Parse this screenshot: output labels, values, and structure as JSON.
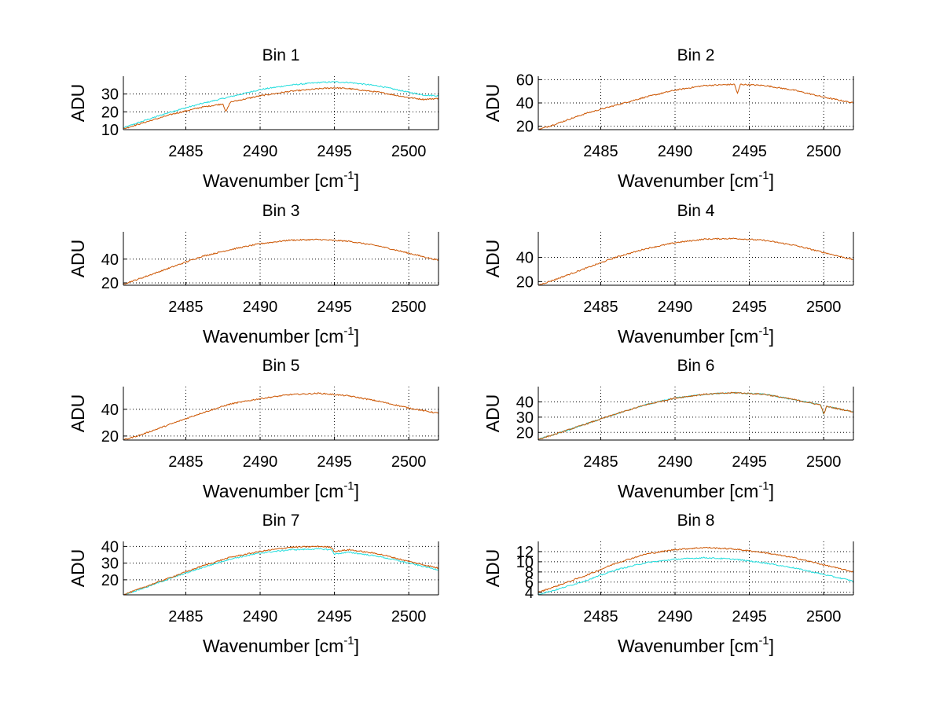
{
  "figure": {
    "background": "#ffffff"
  },
  "colors": {
    "series_a": "#cc5500",
    "series_b": "#22dddd",
    "grid": "#000000"
  },
  "chart_data": [
    {
      "type": "line",
      "title": "Bin 1",
      "xlabel": "Wavenumber [cm",
      "xlabel_sup": "-1",
      "xlabel_end": "]",
      "ylabel": "ADU",
      "xlim": [
        2480.8,
        2502
      ],
      "ylim": [
        10,
        40
      ],
      "xticks": [
        2485,
        2490,
        2495,
        2500
      ],
      "yticks": [
        10,
        20,
        30
      ],
      "grid": true,
      "series": [
        {
          "color": "#22dddd",
          "x": [
            2480.8,
            2482,
            2484,
            2486,
            2488,
            2490,
            2492,
            2494,
            2495,
            2496,
            2498,
            2500,
            2501,
            2502
          ],
          "values": [
            11,
            14.5,
            20,
            24.5,
            28.5,
            32.5,
            35,
            36.5,
            36.8,
            36.5,
            34.5,
            31,
            29.5,
            29
          ]
        },
        {
          "color": "#cc5500",
          "x": [
            2480.8,
            2482,
            2484,
            2486,
            2487.5,
            2487.7,
            2488,
            2490,
            2492,
            2494,
            2495,
            2496,
            2498,
            2500,
            2501,
            2502
          ],
          "values": [
            10.5,
            13.5,
            18.5,
            22.5,
            24.5,
            20,
            25.5,
            29,
            31.5,
            33,
            33.5,
            33,
            31,
            28,
            27,
            27.5
          ]
        }
      ]
    },
    {
      "type": "line",
      "title": "Bin 2",
      "xlabel": "Wavenumber [cm",
      "xlabel_sup": "-1",
      "xlabel_end": "]",
      "ylabel": "ADU",
      "xlim": [
        2480.8,
        2502
      ],
      "ylim": [
        17,
        63
      ],
      "xticks": [
        2485,
        2490,
        2495,
        2500
      ],
      "yticks": [
        20,
        40,
        60
      ],
      "grid": true,
      "series": [
        {
          "color": "#cc5500",
          "x": [
            2480.8,
            2482,
            2484,
            2486,
            2488,
            2490,
            2492,
            2494,
            2494.2,
            2494.4,
            2496,
            2498,
            2500,
            2502
          ],
          "values": [
            17,
            22,
            31,
            38,
            45,
            51,
            55,
            56,
            48,
            56,
            55,
            51,
            45,
            40
          ]
        }
      ]
    },
    {
      "type": "line",
      "title": "Bin 3",
      "xlabel": "Wavenumber [cm",
      "xlabel_sup": "-1",
      "xlabel_end": "]",
      "ylabel": "ADU",
      "xlim": [
        2480.8,
        2502
      ],
      "ylim": [
        18,
        63
      ],
      "xticks": [
        2485,
        2490,
        2495,
        2500
      ],
      "yticks": [
        20,
        40
      ],
      "grid": true,
      "series": [
        {
          "color": "#cc5500",
          "x": [
            2480.8,
            2482,
            2484,
            2486,
            2488,
            2490,
            2492,
            2494,
            2496,
            2498,
            2500,
            2502
          ],
          "values": [
            19,
            24,
            33,
            42,
            48,
            53,
            56,
            56.5,
            55,
            51,
            45,
            39
          ]
        }
      ]
    },
    {
      "type": "line",
      "title": "Bin 4",
      "xlabel": "Wavenumber [cm",
      "xlabel_sup": "-1",
      "xlabel_end": "]",
      "ylabel": "ADU",
      "xlim": [
        2480.8,
        2502
      ],
      "ylim": [
        17,
        61
      ],
      "xticks": [
        2485,
        2490,
        2495,
        2500
      ],
      "yticks": [
        20,
        40
      ],
      "grid": true,
      "series": [
        {
          "color": "#cc5500",
          "x": [
            2480.8,
            2482,
            2484,
            2486,
            2488,
            2490,
            2492,
            2494,
            2496,
            2498,
            2500,
            2502
          ],
          "values": [
            17,
            22,
            31,
            40,
            47,
            52,
            55,
            55.5,
            54,
            50,
            44,
            38
          ]
        }
      ]
    },
    {
      "type": "line",
      "title": "Bin 5",
      "xlabel": "Wavenumber [cm",
      "xlabel_sup": "-1",
      "xlabel_end": "]",
      "ylabel": "ADU",
      "xlim": [
        2480.8,
        2502
      ],
      "ylim": [
        17,
        57
      ],
      "xticks": [
        2485,
        2490,
        2495,
        2500
      ],
      "yticks": [
        20,
        40
      ],
      "grid": true,
      "series": [
        {
          "color": "#cc5500",
          "x": [
            2480.8,
            2482,
            2484,
            2486,
            2488,
            2490,
            2492,
            2494,
            2496,
            2498,
            2500,
            2502
          ],
          "values": [
            17,
            21,
            29,
            37,
            44,
            48,
            51,
            52,
            50,
            46,
            41,
            37
          ]
        }
      ]
    },
    {
      "type": "line",
      "title": "Bin 6",
      "xlabel": "Wavenumber [cm",
      "xlabel_sup": "-1",
      "xlabel_end": "]",
      "ylabel": "ADU",
      "xlim": [
        2480.8,
        2502
      ],
      "ylim": [
        15,
        50
      ],
      "xticks": [
        2485,
        2490,
        2495,
        2500
      ],
      "yticks": [
        20,
        30,
        40
      ],
      "grid": true,
      "series": [
        {
          "color": "#22dddd",
          "x": [
            2480.8,
            2482,
            2484,
            2486,
            2488,
            2490,
            2492,
            2494,
            2496,
            2498,
            2499.8,
            2500,
            2500.2,
            2502
          ],
          "values": [
            15.5,
            19,
            25.5,
            32,
            38,
            42.5,
            45,
            46,
            45,
            41.5,
            38,
            32,
            37,
            33.5
          ]
        },
        {
          "color": "#cc5500",
          "x": [
            2480.8,
            2482,
            2484,
            2486,
            2488,
            2490,
            2492,
            2494,
            2496,
            2498,
            2499.8,
            2500,
            2500.2,
            2502
          ],
          "values": [
            15.5,
            19,
            25.5,
            32,
            38,
            42.5,
            45,
            46,
            45,
            41.5,
            38,
            32,
            37,
            33.5
          ]
        }
      ]
    },
    {
      "type": "line",
      "title": "Bin 7",
      "xlabel": "Wavenumber [cm",
      "xlabel_sup": "-1",
      "xlabel_end": "]",
      "ylabel": "ADU",
      "xlim": [
        2480.8,
        2502
      ],
      "ylim": [
        11,
        43
      ],
      "xticks": [
        2485,
        2490,
        2495,
        2500
      ],
      "yticks": [
        20,
        30,
        40
      ],
      "grid": true,
      "series": [
        {
          "color": "#22dddd",
          "x": [
            2480.8,
            2482,
            2484,
            2486,
            2488,
            2490,
            2492,
            2494,
            2494.8,
            2495,
            2496,
            2498,
            2500,
            2502
          ],
          "values": [
            11,
            14.5,
            21,
            27,
            32.5,
            36,
            38,
            38.5,
            38,
            35.5,
            36.5,
            34,
            30,
            26
          ]
        },
        {
          "color": "#cc5500",
          "x": [
            2480.8,
            2482,
            2484,
            2486,
            2488,
            2490,
            2492,
            2494,
            2494.8,
            2495,
            2496,
            2498,
            2500,
            2502
          ],
          "values": [
            11,
            15,
            21.5,
            28,
            33.5,
            37,
            39.5,
            40,
            39.5,
            37,
            38,
            35.5,
            31,
            27
          ]
        }
      ]
    },
    {
      "type": "line",
      "title": "Bin 8",
      "xlabel": "Wavenumber [cm",
      "xlabel_sup": "-1",
      "xlabel_end": "]",
      "ylabel": "ADU",
      "xlim": [
        2480.8,
        2502
      ],
      "ylim": [
        3.5,
        14
      ],
      "xticks": [
        2485,
        2490,
        2495,
        2500
      ],
      "yticks": [
        4,
        6,
        8,
        10,
        12
      ],
      "grid": true,
      "series": [
        {
          "color": "#22dddd",
          "x": [
            2480.8,
            2482,
            2484,
            2486,
            2488,
            2490,
            2492,
            2494,
            2496,
            2498,
            2500,
            2502
          ],
          "values": [
            3.6,
            4.5,
            6.3,
            8.4,
            9.8,
            10.5,
            10.8,
            10.5,
            9.8,
            8.8,
            7.5,
            6.2
          ]
        },
        {
          "color": "#cc5500",
          "x": [
            2480.8,
            2482,
            2484,
            2486,
            2488,
            2490,
            2492,
            2494,
            2496,
            2498,
            2500,
            2502
          ],
          "values": [
            4,
            5.2,
            7.3,
            9.7,
            11.5,
            12.4,
            12.8,
            12.5,
            11.8,
            10.8,
            9.4,
            8
          ]
        }
      ]
    }
  ]
}
